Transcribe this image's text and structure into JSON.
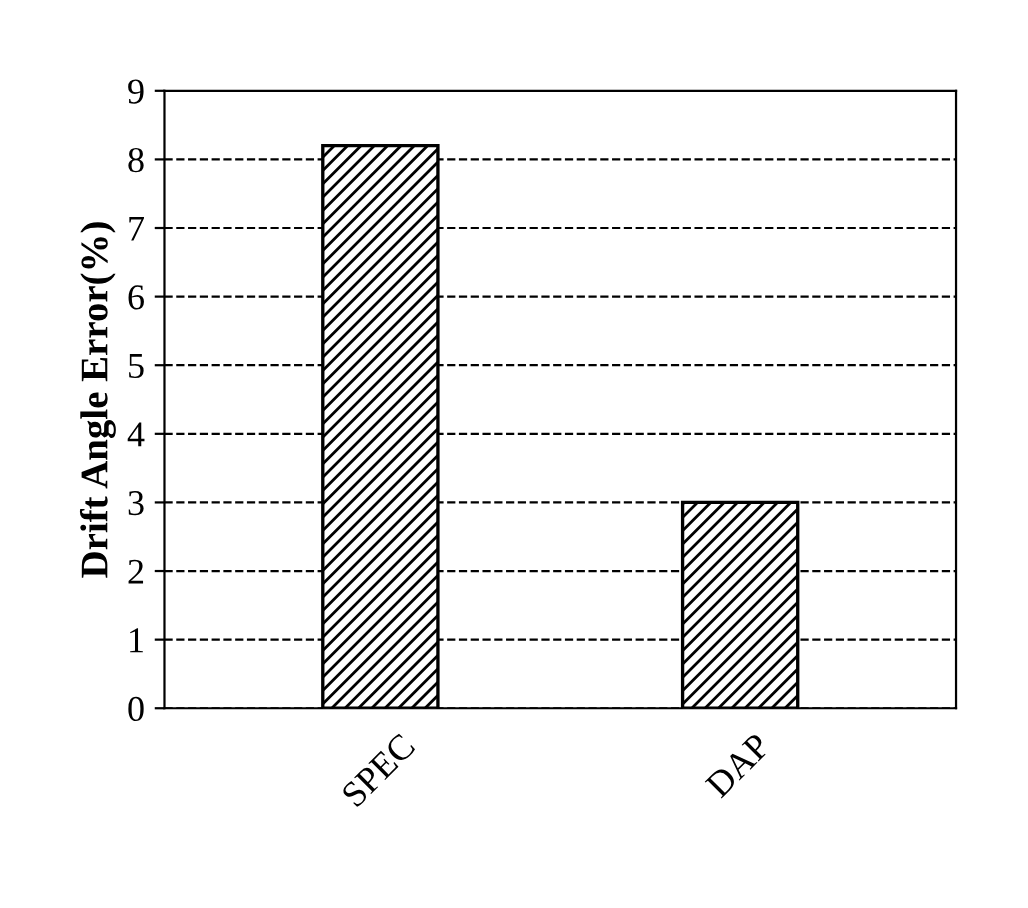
{
  "chart_data": {
    "type": "bar",
    "ylabel": "Drift Angle Error(%)",
    "categories": [
      "SPEC",
      "DAP"
    ],
    "values": [
      8.2,
      3.0
    ],
    "color": "#000000",
    "ylim": [
      0,
      9
    ],
    "yticks": [
      0,
      1,
      2,
      3,
      4,
      5,
      6,
      7,
      8,
      9
    ],
    "grid": "y",
    "line_style": "dashed"
  }
}
